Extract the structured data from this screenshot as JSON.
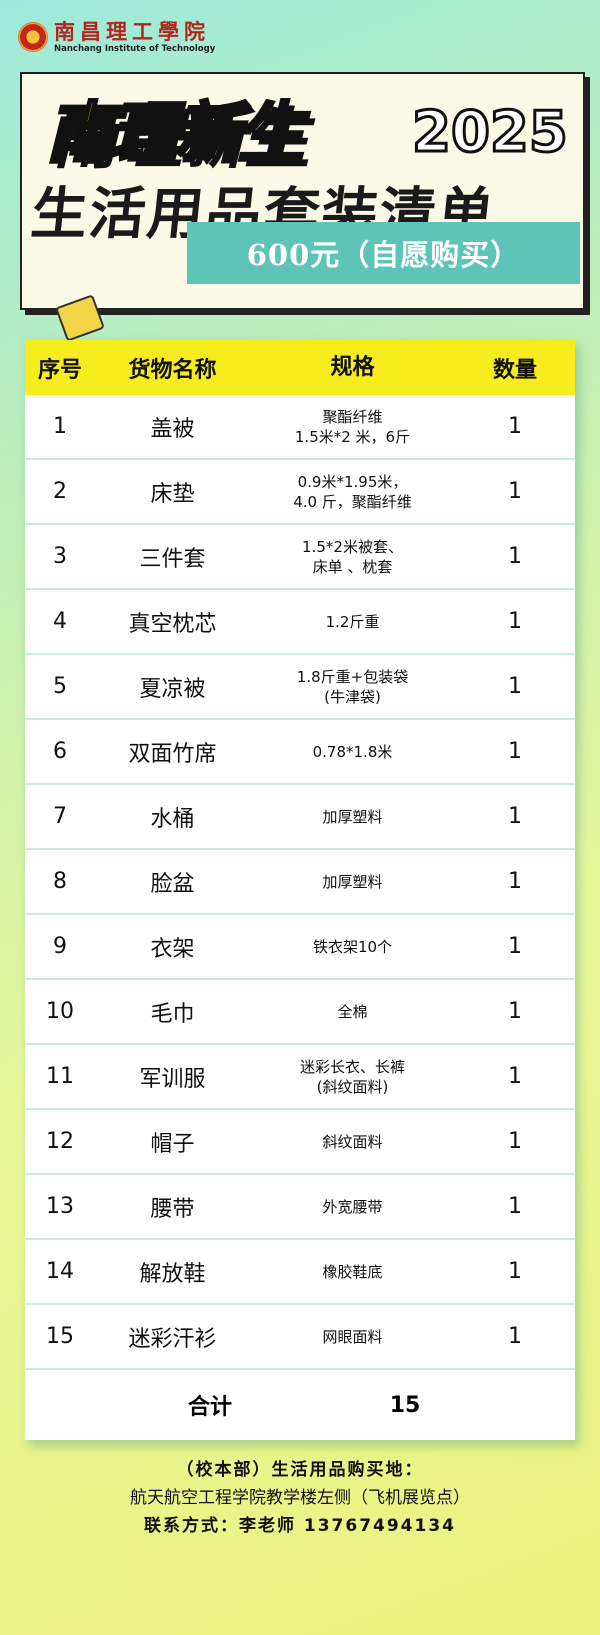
{
  "logo": {
    "cn": "南昌理工學院",
    "en": "Nanchang Institute of Technology"
  },
  "hero": {
    "title": "南理新生",
    "year": "2025",
    "subtitle": "生活用品套装清单",
    "price": "600元（自愿购买）"
  },
  "table": {
    "headers": [
      "序号",
      "货物名称",
      "规格",
      "数量"
    ],
    "rows": [
      {
        "no": "1",
        "name": "盖被",
        "spec": [
          "聚酯纤维",
          "1.5米*2 米，6斤"
        ],
        "qty": "1"
      },
      {
        "no": "2",
        "name": "床垫",
        "spec": [
          "0.9米*1.95米，",
          "4.0 斤，聚酯纤维"
        ],
        "qty": "1"
      },
      {
        "no": "3",
        "name": "三件套",
        "spec": [
          "1.5*2米被套、",
          "床单 、枕套"
        ],
        "qty": "1"
      },
      {
        "no": "4",
        "name": "真空枕芯",
        "spec": [
          "1.2斤重"
        ],
        "qty": "1"
      },
      {
        "no": "5",
        "name": "夏凉被",
        "spec": [
          "1.8斤重+包装袋",
          "(牛津袋)"
        ],
        "qty": "1"
      },
      {
        "no": "6",
        "name": "双面竹席",
        "spec": [
          "0.78*1.8米"
        ],
        "qty": "1"
      },
      {
        "no": "7",
        "name": "水桶",
        "spec": [
          "加厚塑料"
        ],
        "qty": "1"
      },
      {
        "no": "8",
        "name": "脸盆",
        "spec": [
          "加厚塑料"
        ],
        "qty": "1"
      },
      {
        "no": "9",
        "name": "衣架",
        "spec": [
          "铁衣架10个"
        ],
        "qty": "1"
      },
      {
        "no": "10",
        "name": "毛巾",
        "spec": [
          "全棉"
        ],
        "qty": "1"
      },
      {
        "no": "11",
        "name": "军训服",
        "spec": [
          "迷彩长衣、长裤",
          "(斜纹面料)"
        ],
        "qty": "1"
      },
      {
        "no": "12",
        "name": "帽子",
        "spec": [
          "斜纹面料"
        ],
        "qty": "1"
      },
      {
        "no": "13",
        "name": "腰带",
        "spec": [
          "外宽腰带"
        ],
        "qty": "1"
      },
      {
        "no": "14",
        "name": "解放鞋",
        "spec": [
          "橡胶鞋底"
        ],
        "qty": "1"
      },
      {
        "no": "15",
        "name": "迷彩汗衫",
        "spec": [
          "网眼面料"
        ],
        "qty": "1"
      }
    ],
    "total_label": "合计",
    "total_value": "15"
  },
  "footer": {
    "line1": "（校本部）生活用品购买地：",
    "line2": "航天航空工程学院教学楼左侧（飞机展览点）",
    "line3": "联系方式：李老师 13767494134"
  }
}
